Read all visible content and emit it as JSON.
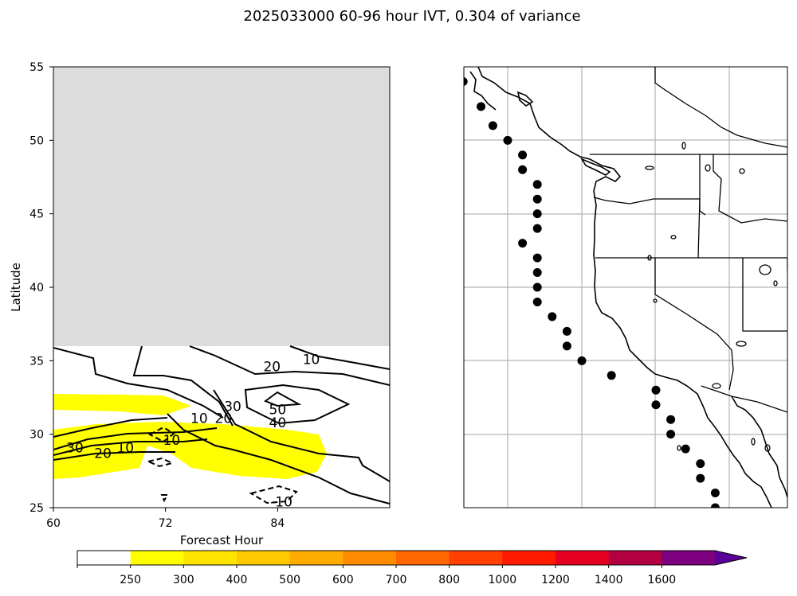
{
  "title": "2025033000 60-96 hour IVT, 0.304 of variance",
  "chart_data": [
    {
      "panel": "hovmoller",
      "type": "contour",
      "xlabel": "Forecast Hour",
      "ylabel": "Latitude",
      "xlim": [
        60,
        96
      ],
      "ylim": [
        25,
        55
      ],
      "xticks": [
        60,
        72,
        84
      ],
      "yticks": [
        25,
        30,
        35,
        40,
        45,
        50,
        55
      ],
      "missing_region": {
        "lat_min": 36,
        "lat_max": 55,
        "color": "#dcdcdc"
      },
      "filled_ivt_band": {
        "level": 250,
        "color": "#ffff00"
      },
      "contour_labels": [
        {
          "text": "10",
          "x": 87.6,
          "y": 35.1
        },
        {
          "text": "20",
          "x": 83.4,
          "y": 34.6
        },
        {
          "text": "50",
          "x": 84.0,
          "y": 31.7
        },
        {
          "text": "40",
          "x": 84.0,
          "y": 30.8
        },
        {
          "text": "30",
          "x": 79.2,
          "y": 31.9
        },
        {
          "text": "20",
          "x": 78.2,
          "y": 31.1
        },
        {
          "text": "10",
          "x": 75.6,
          "y": 31.1
        },
        {
          "text": "-10",
          "x": 72.4,
          "y": 29.6
        },
        {
          "text": "10",
          "x": 67.7,
          "y": 29.1
        },
        {
          "text": "20",
          "x": 65.3,
          "y": 28.7
        },
        {
          "text": "30",
          "x": 62.3,
          "y": 29.1
        },
        {
          "text": "-10",
          "x": 84.4,
          "y": 25.4
        }
      ]
    },
    {
      "panel": "map",
      "type": "scatter",
      "points": [
        {
          "lon": -128.0,
          "lat": 54.0
        },
        {
          "lon": -126.8,
          "lat": 52.3
        },
        {
          "lon": -126.0,
          "lat": 51.0
        },
        {
          "lon": -125.0,
          "lat": 50.0
        },
        {
          "lon": -124.0,
          "lat": 49.0
        },
        {
          "lon": -124.0,
          "lat": 48.0
        },
        {
          "lon": -123.0,
          "lat": 47.0
        },
        {
          "lon": -123.0,
          "lat": 46.0
        },
        {
          "lon": -123.0,
          "lat": 45.0
        },
        {
          "lon": -123.0,
          "lat": 44.0
        },
        {
          "lon": -124.0,
          "lat": 43.0
        },
        {
          "lon": -123.0,
          "lat": 42.0
        },
        {
          "lon": -123.0,
          "lat": 41.0
        },
        {
          "lon": -123.0,
          "lat": 40.0
        },
        {
          "lon": -123.0,
          "lat": 39.0
        },
        {
          "lon": -122.0,
          "lat": 38.0
        },
        {
          "lon": -121.0,
          "lat": 37.0
        },
        {
          "lon": -121.0,
          "lat": 36.0
        },
        {
          "lon": -120.0,
          "lat": 35.0
        },
        {
          "lon": -118.0,
          "lat": 34.0
        },
        {
          "lon": -115.0,
          "lat": 33.0
        },
        {
          "lon": -115.0,
          "lat": 32.0
        },
        {
          "lon": -114.0,
          "lat": 31.0
        },
        {
          "lon": -114.0,
          "lat": 30.0
        },
        {
          "lon": -113.0,
          "lat": 29.0
        },
        {
          "lon": -112.0,
          "lat": 28.0
        },
        {
          "lon": -112.0,
          "lat": 27.0
        },
        {
          "lon": -111.0,
          "lat": 26.0
        },
        {
          "lon": -111.0,
          "lat": 25.0
        }
      ]
    },
    {
      "panel": "colorbar",
      "type": "colorbar",
      "levels": [
        "250",
        "300",
        "400",
        "500",
        "600",
        "700",
        "800",
        "1000",
        "1200",
        "1400",
        "1600"
      ],
      "colors": [
        "#ffffff",
        "#ffff00",
        "#ffe400",
        "#ffc800",
        "#ffac00",
        "#ff8c00",
        "#ff6600",
        "#ff4000",
        "#ff1a00",
        "#e60020",
        "#b30040",
        "#7d0080",
        "#5a0099"
      ]
    }
  ]
}
